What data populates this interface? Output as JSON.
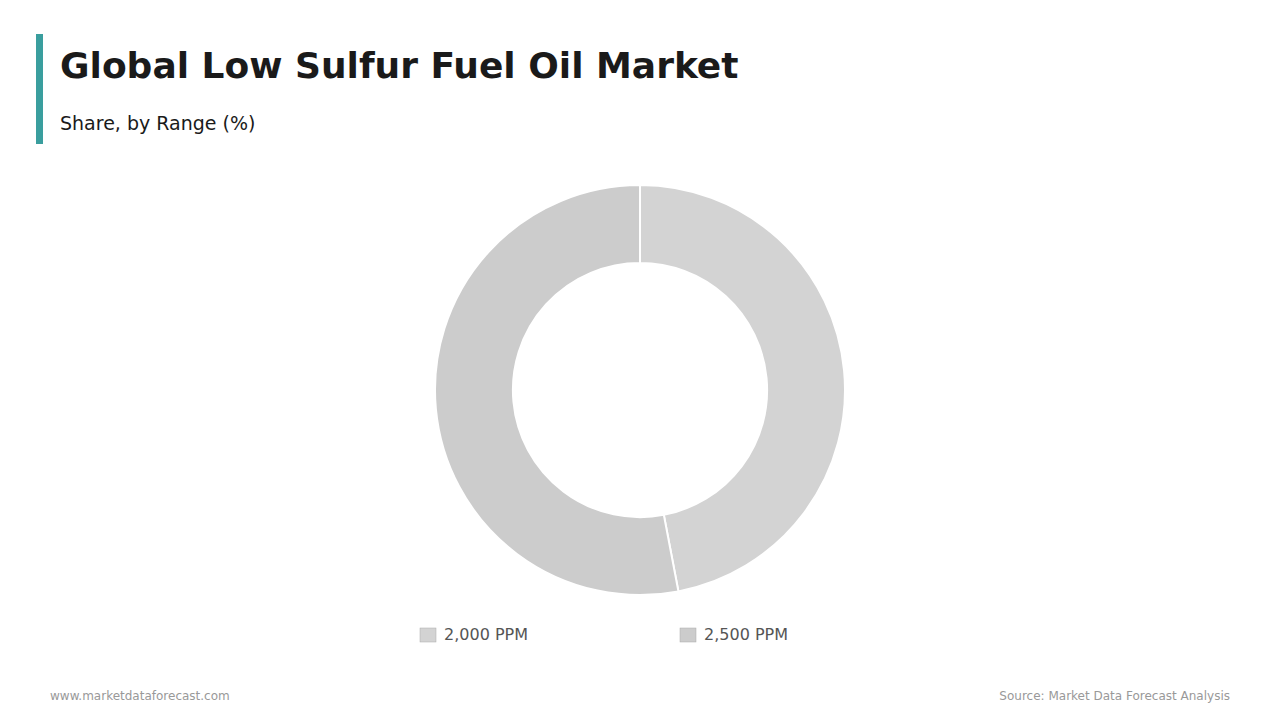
{
  "chart_data": {
    "type": "donut",
    "title": "Global Low Sulfur Fuel Oil Market",
    "subtitle": "Share, by Range (%)",
    "categories": [
      "2,000 PPM",
      "2,500 PPM"
    ],
    "values": [
      47,
      53
    ],
    "colors": [
      "#d3d3d3",
      "#cccccc"
    ],
    "legend": "bottom",
    "annotations": [
      "www.marketdataforecast.com",
      "Source: Market Data Forecast Analysis"
    ]
  }
}
